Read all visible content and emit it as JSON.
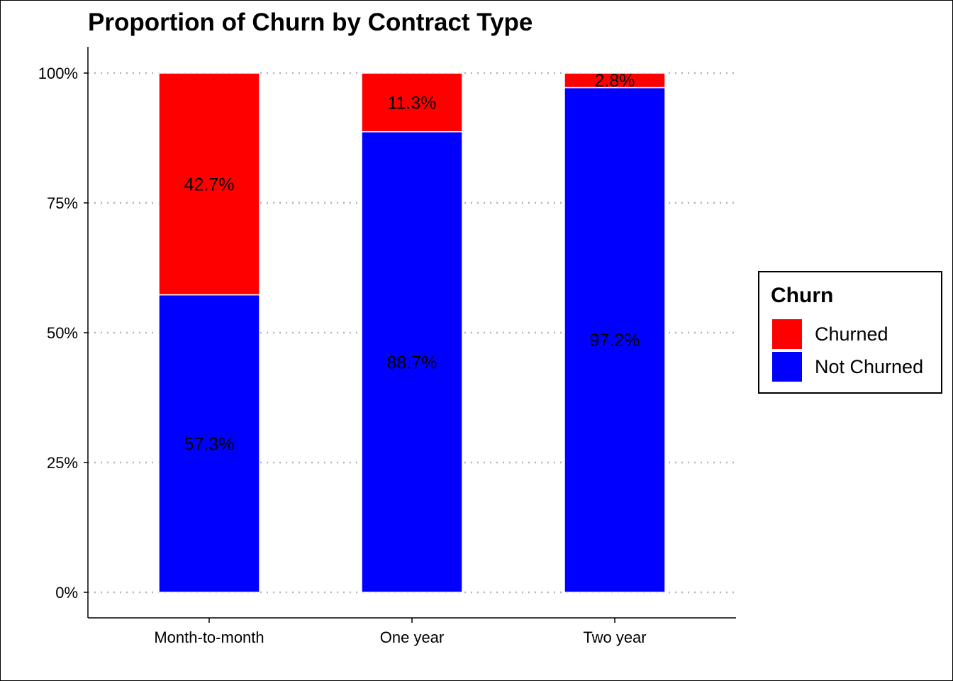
{
  "chart_data": {
    "type": "bar",
    "stacked": true,
    "title": "Proportion of Churn by Contract Type",
    "xlabel": "",
    "ylabel": "",
    "categories": [
      "Month-to-month",
      "One year",
      "Two year"
    ],
    "series": [
      {
        "name": "Not Churned",
        "values": [
          57.3,
          88.7,
          97.2
        ],
        "labels": [
          "57.3%",
          "88.7%",
          "97.2%"
        ],
        "color": "#0000FF"
      },
      {
        "name": "Churned",
        "values": [
          42.7,
          11.3,
          2.8
        ],
        "labels": [
          "42.7%",
          "11.3%",
          "2.8%"
        ],
        "color": "#FF0000"
      }
    ],
    "ylim": [
      0,
      100
    ],
    "yticks": [
      0,
      25,
      50,
      75,
      100
    ],
    "ytick_labels": [
      "0%",
      "25%",
      "50%",
      "75%",
      "100%"
    ],
    "grid": "horizontal dotted",
    "legend": {
      "title": "Churn",
      "placement": "right",
      "entries": [
        {
          "label": "Churned",
          "color": "#FF0000"
        },
        {
          "label": "Not Churned",
          "color": "#0000FF"
        }
      ]
    }
  }
}
